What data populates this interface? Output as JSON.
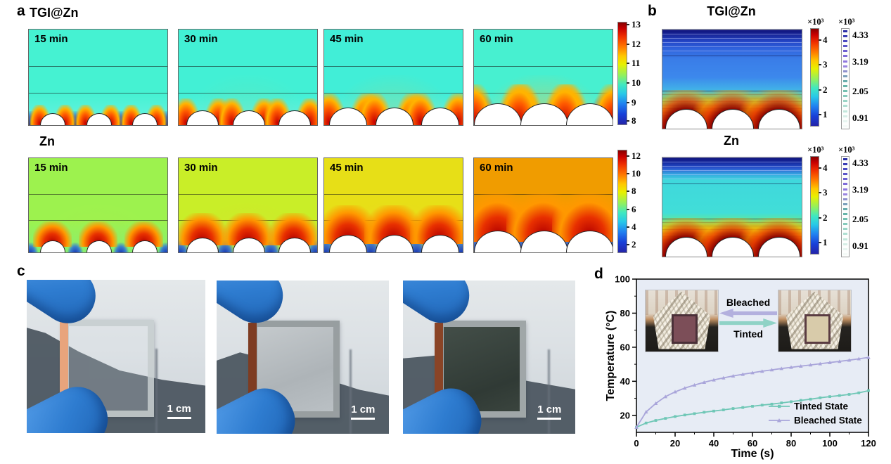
{
  "panel_a": {
    "label": "a",
    "rows": [
      {
        "title": "TGI@Zn",
        "variant": "tgi",
        "time_labels": [
          "15 min",
          "30 min",
          "45 min",
          "60 min"
        ],
        "base_colors": [
          "#45f2d2",
          "#42f0d5",
          "#41eed7",
          "#47f0d0"
        ],
        "colorbar_ticks": [
          "13",
          "12",
          "11",
          "10",
          "9",
          "8"
        ]
      },
      {
        "title": "Zn",
        "variant": "zn",
        "time_labels": [
          "15 min",
          "30 min",
          "45 min",
          "60 min"
        ],
        "base_colors": [
          "#9df24e",
          "#c9ee28",
          "#e7df17",
          "#f09c00"
        ],
        "colorbar_ticks": [
          "12",
          "10",
          "8",
          "6",
          "4",
          "2"
        ]
      }
    ]
  },
  "panel_b": {
    "label": "b",
    "plots": [
      {
        "title": "TGI@Zn",
        "variant": "tgi"
      },
      {
        "title": "Zn",
        "variant": "zn"
      }
    ],
    "colorbar_continuous": {
      "unit": "×10³",
      "ticks": [
        "4",
        "3",
        "2",
        "1"
      ]
    },
    "colorbar_discrete": {
      "unit": "×10³",
      "ticks": [
        "4.33",
        "3.19",
        "2.05",
        "0.91"
      ]
    }
  },
  "panel_c": {
    "label": "c",
    "photos": [
      {
        "variant": "transparent-device",
        "scale_label": "1 cm"
      },
      {
        "variant": "silver-mirror-device",
        "scale_label": "1 cm"
      },
      {
        "variant": "dark-tinted-device",
        "scale_label": "1 cm"
      }
    ]
  },
  "panel_d": {
    "label": "d",
    "inset": {
      "top_arrow_label": "Bleached",
      "bottom_arrow_label": "Tinted",
      "top_arrow_color": "#b3b0de",
      "bottom_arrow_color": "#8fd2c6"
    }
  },
  "chart_data": {
    "type": "line",
    "title": "",
    "xlabel": "Time (s)",
    "ylabel": "Temperature (°C)",
    "xlim": [
      0,
      120
    ],
    "ylim": [
      10,
      100
    ],
    "xticks": [
      0,
      20,
      40,
      60,
      80,
      100,
      120
    ],
    "yticks": [
      20,
      40,
      60,
      80,
      100
    ],
    "grid": false,
    "plot_bg": "#e7ecf5",
    "legend_position": "lower right",
    "x": [
      0,
      5,
      10,
      15,
      20,
      25,
      30,
      35,
      40,
      45,
      50,
      55,
      60,
      65,
      70,
      75,
      80,
      85,
      90,
      95,
      100,
      105,
      110,
      115,
      120
    ],
    "series": [
      {
        "name": "Tinted State",
        "color": "#6fc7b6",
        "marker": "square",
        "values": [
          13,
          15.5,
          17,
          18.2,
          19.3,
          20.2,
          21,
          21.8,
          22.5,
          23.2,
          24,
          24.6,
          25.3,
          26,
          26.6,
          27.3,
          28,
          28.8,
          29.5,
          30.3,
          31,
          31.6,
          32.3,
          33.2,
          34.5
        ]
      },
      {
        "name": "Bleached State",
        "color": "#a9a5da",
        "marker": "triangle",
        "values": [
          13,
          22,
          27,
          31,
          33.8,
          36,
          37.8,
          39.4,
          40.8,
          42,
          43.1,
          44.1,
          45,
          45.9,
          46.7,
          47.5,
          48.2,
          48.9,
          49.6,
          50.3,
          51,
          51.7,
          52.4,
          53.2,
          54
        ]
      }
    ]
  }
}
